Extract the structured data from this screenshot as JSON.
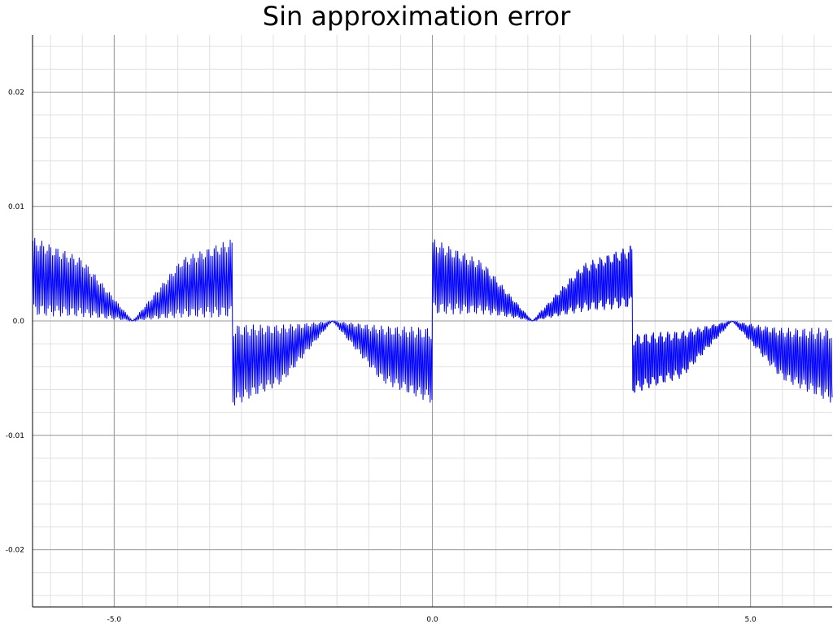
{
  "chart_data": {
    "type": "line",
    "title": "Sin approximation error",
    "xlabel": "",
    "ylabel": "",
    "xlim": [
      -6.283,
      6.283
    ],
    "ylim": [
      -0.025,
      0.025
    ],
    "x_ticks": [
      -5.0,
      0.0,
      5.0
    ],
    "x_tick_labels": [
      "-5.0",
      "0.0",
      "5.0"
    ],
    "y_ticks": [
      0.02,
      0.01,
      0.0,
      -0.01,
      -0.02
    ],
    "y_tick_labels": [
      "0.02",
      "0.01",
      "0.0",
      "-0.01",
      "-0.02"
    ],
    "grid": true,
    "legend": "none",
    "series": [
      {
        "color": "#0000ff",
        "envelope": {
          "x": [
            -6.283,
            -5.5,
            -4.71,
            -3.93,
            -3.142,
            -3.141,
            -2.36,
            -1.571,
            -0.79,
            -0.001,
            0.0,
            0.79,
            1.571,
            2.36,
            3.141,
            3.142,
            3.93,
            4.71,
            5.5,
            6.283
          ],
          "upper": [
            0.0075,
            0.0055,
            0.0,
            0.0055,
            0.0072,
            -0.0003,
            -0.0003,
            0.0,
            -0.0003,
            -0.0003,
            0.0075,
            0.0055,
            0.0,
            0.0055,
            0.0075,
            -0.0003,
            -0.0003,
            0.0,
            -0.0003,
            -0.0003
          ],
          "lower": [
            0.0003,
            0.0003,
            0.0,
            0.0003,
            0.0003,
            -0.0075,
            -0.0055,
            0.0,
            -0.0055,
            -0.0075,
            0.0003,
            0.0003,
            0.0,
            0.0003,
            0.0003,
            -0.0072,
            -0.0055,
            0.0,
            -0.0055,
            -0.0075
          ]
        }
      }
    ]
  },
  "colors": {
    "series": "#0000ff",
    "major_grid": "#9a9a9a",
    "minor_grid": "#e0e0e0",
    "axis": "#000000"
  }
}
